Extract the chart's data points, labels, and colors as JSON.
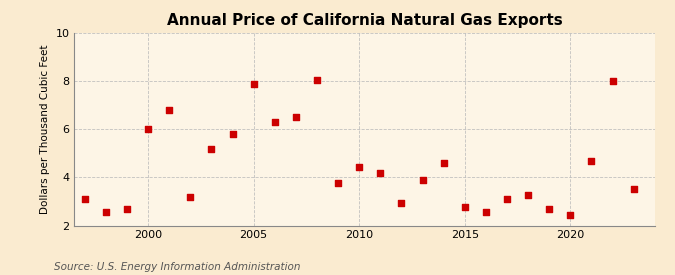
{
  "title": "Annual Price of California Natural Gas Exports",
  "ylabel": "Dollars per Thousand Cubic Feet",
  "source": "Source: U.S. Energy Information Administration",
  "years": [
    1997,
    1998,
    1999,
    2000,
    2001,
    2002,
    2003,
    2004,
    2005,
    2006,
    2007,
    2008,
    2009,
    2010,
    2011,
    2012,
    2013,
    2014,
    2015,
    2016,
    2017,
    2018,
    2019,
    2020,
    2021,
    2022,
    2023
  ],
  "values": [
    3.1,
    2.55,
    2.7,
    6.0,
    6.8,
    3.2,
    5.2,
    5.8,
    7.9,
    6.3,
    6.5,
    8.05,
    3.75,
    4.45,
    4.2,
    2.95,
    3.9,
    4.6,
    2.75,
    2.55,
    3.1,
    3.25,
    2.7,
    2.45,
    4.7,
    8.0,
    3.5
  ],
  "ylim": [
    2,
    10
  ],
  "yticks": [
    2,
    4,
    6,
    8,
    10
  ],
  "xlim": [
    1996.5,
    2024
  ],
  "xticks": [
    2000,
    2005,
    2010,
    2015,
    2020
  ],
  "marker_color": "#cc0000",
  "marker_size": 16,
  "bg_color": "#faebd0",
  "plot_bg_color": "#fdf5e6",
  "grid_color": "#bbbbbb",
  "title_fontsize": 11,
  "label_fontsize": 7.5,
  "source_fontsize": 7.5,
  "tick_fontsize": 8
}
